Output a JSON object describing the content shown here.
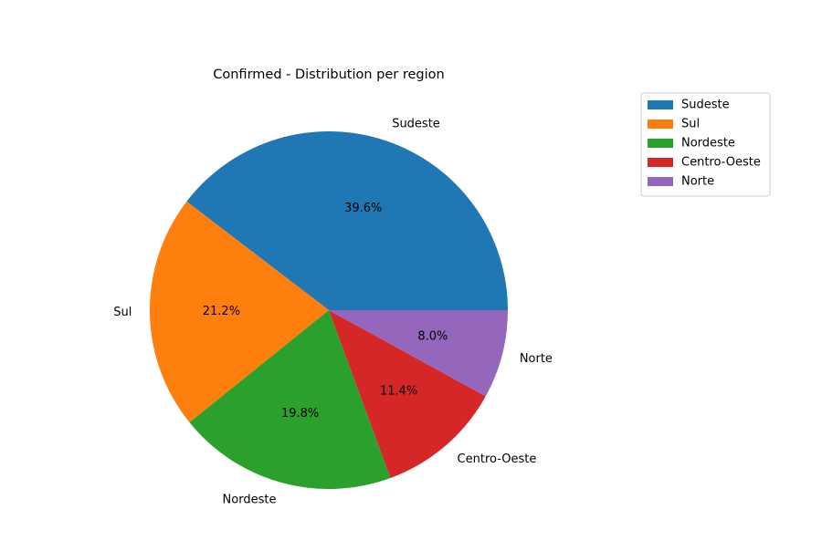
{
  "chart_data": {
    "type": "pie",
    "title": "Confirmed - Distribution per region",
    "categories": [
      "Sudeste",
      "Sul",
      "Nordeste",
      "Centro-Oeste",
      "Norte"
    ],
    "values": [
      39.6,
      21.2,
      19.8,
      11.4,
      8.0
    ],
    "value_labels": [
      "39.6%",
      "21.2%",
      "19.8%",
      "11.4%",
      "8.0%"
    ],
    "colors": [
      "#1f77b4",
      "#ff7f0e",
      "#2ca02c",
      "#d62728",
      "#9467bd"
    ],
    "legend": "upper right"
  }
}
